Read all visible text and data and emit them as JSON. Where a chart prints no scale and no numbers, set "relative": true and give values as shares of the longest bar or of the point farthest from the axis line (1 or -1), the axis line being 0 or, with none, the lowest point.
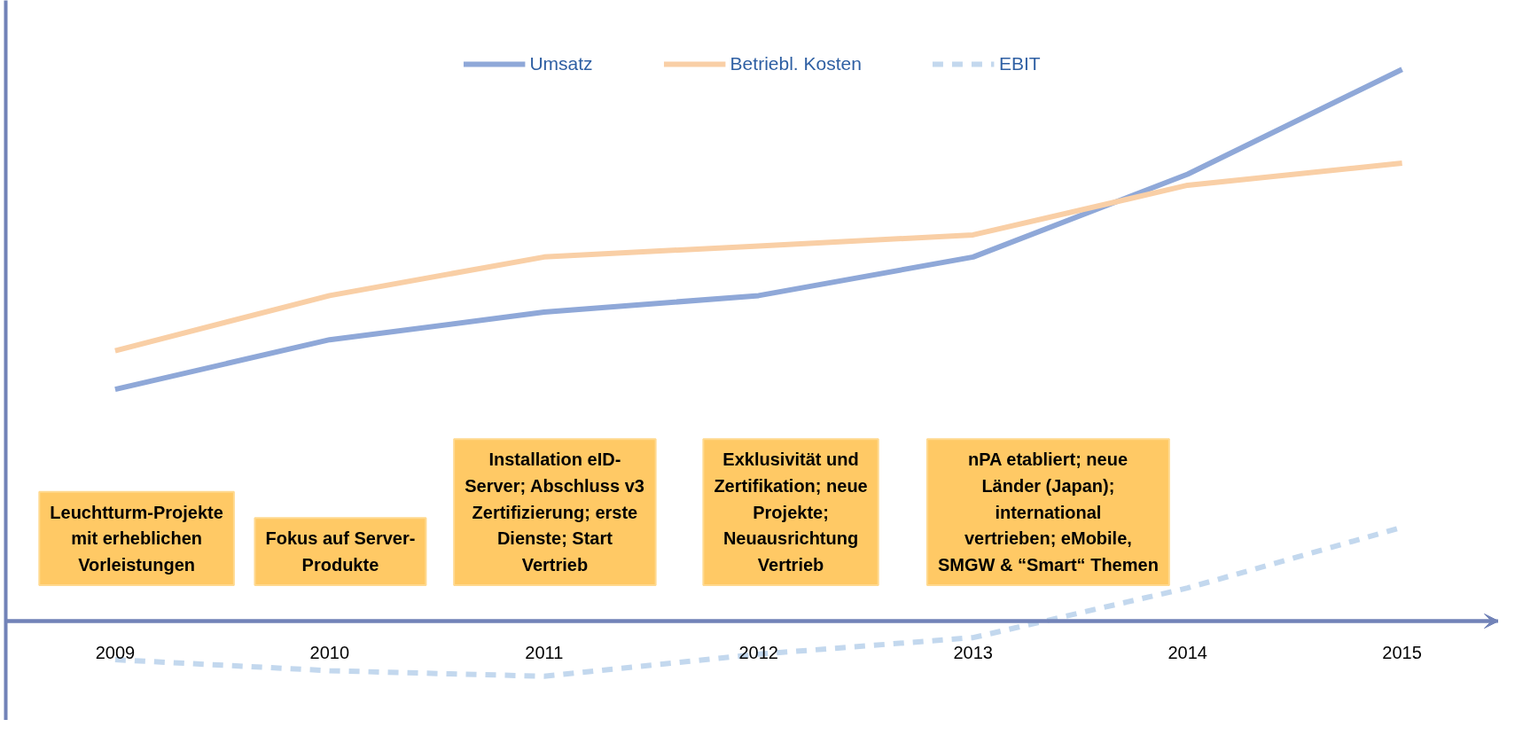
{
  "chart_data": {
    "type": "line",
    "relative": true,
    "categories": [
      "2009",
      "2010",
      "2011",
      "2012",
      "2013",
      "2014",
      "2015"
    ],
    "series": [
      {
        "name": "Umsatz",
        "color": "#8fa8d8",
        "values": [
          0.42,
          0.51,
          0.56,
          0.59,
          0.66,
          0.81,
          1.0
        ]
      },
      {
        "name": "Betriebl. Kosten",
        "color": "#f9cfa6",
        "values": [
          0.49,
          0.59,
          0.66,
          0.68,
          0.7,
          0.79,
          0.83
        ]
      },
      {
        "name": "EBIT",
        "color": "#c3d8ee",
        "values": [
          -0.07,
          -0.09,
          -0.1,
          -0.06,
          -0.03,
          0.06,
          0.17
        ],
        "line_style": "dashed"
      }
    ],
    "legend": "top",
    "grid": false,
    "marker": "none",
    "tick_labels": "x",
    "annotations": [
      "Leuchtturm-Projekte mit erheblichen Vorleistungen",
      "Fokus auf Server-Produkte",
      "Installation eID-Server; Abschluss v3 Zertifizierung; erste Dienste; Start Vertrieb",
      "Exklusivität und Zertifikation; neue Projekte; Neuausrichtung Vertrieb",
      "nPA etabliert; neue Länder (Japan); international vertrieben; eMobile, SMGW & “Smart“ Themen"
    ]
  }
}
